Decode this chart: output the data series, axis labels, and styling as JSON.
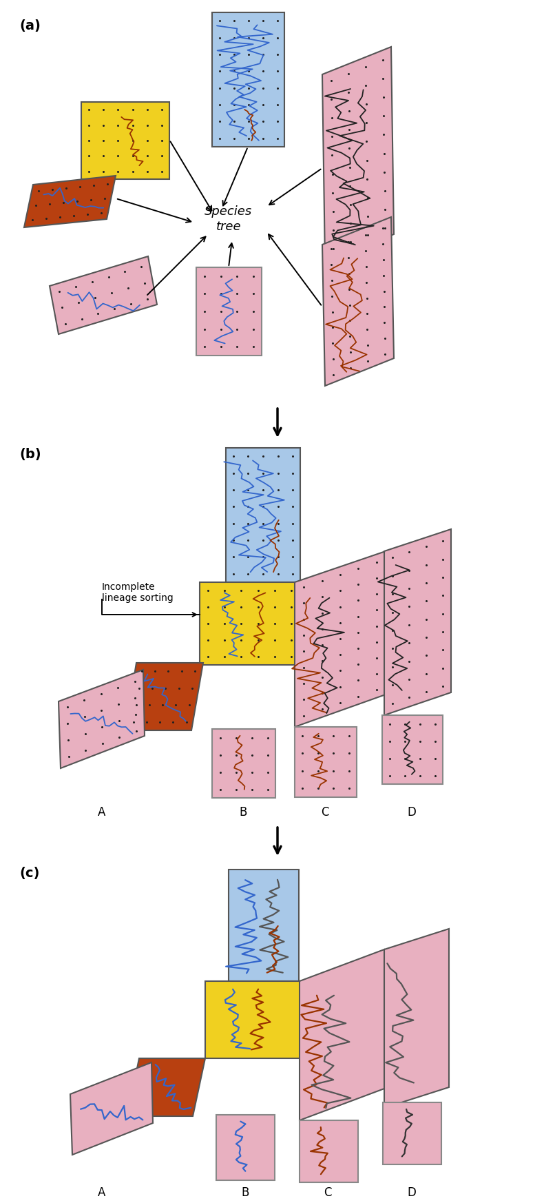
{
  "colors": {
    "blue_pop": "#a8c8e8",
    "yellow_pop": "#f0d020",
    "brown_pop": "#b84010",
    "pink_pop": "#e8b0c0",
    "pink_light": "#e8b8c8",
    "gene_blue": "#3366cc",
    "gene_red": "#993300",
    "gene_black": "#222222",
    "dot_color": "#222222",
    "bg": "#ffffff"
  },
  "panel_a_label": "(a)",
  "panel_b_label": "(b)",
  "panel_c_label": "(c)",
  "species_tree_text": "Species\ntree",
  "incomplete_lineage_text": "Incomplete\nlineage sorting",
  "taxa_labels": [
    "A",
    "B",
    "C",
    "D"
  ]
}
